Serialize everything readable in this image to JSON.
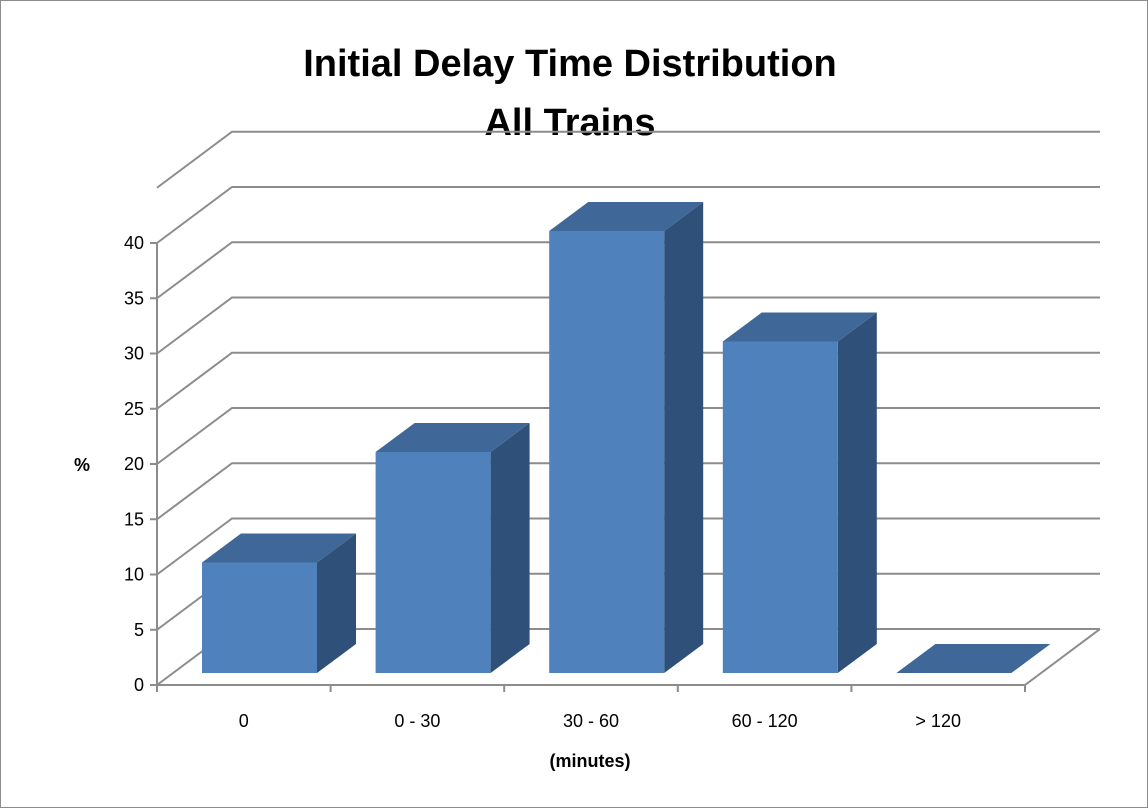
{
  "chart_data": {
    "type": "bar",
    "title": "Initial Delay Time Distribution",
    "subtitle": "All Trains",
    "xlabel": "(minutes)",
    "ylabel": "%",
    "categories": [
      "0",
      "0 - 30",
      "30 - 60",
      "60 - 120",
      "> 120"
    ],
    "values": [
      10,
      20,
      40,
      30,
      0
    ],
    "ylim": [
      0,
      40
    ],
    "yticks": [
      "0",
      "5",
      "10",
      "15",
      "20",
      "25",
      "30",
      "35",
      "40"
    ],
    "grid": true,
    "legend": "none",
    "style": "3d-column",
    "colors": {
      "front": "#4f81bd",
      "top": "#3f6797",
      "side": "#2f5079",
      "grid": "#8c8c8c"
    }
  }
}
